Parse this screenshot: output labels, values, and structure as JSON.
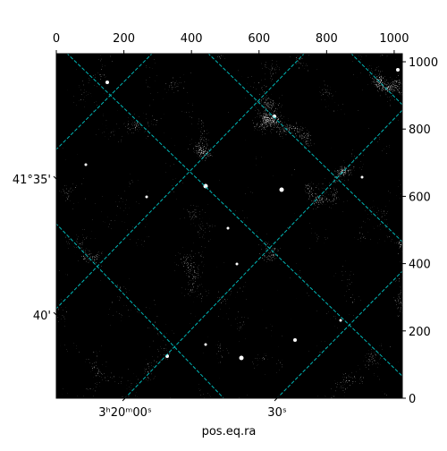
{
  "chart_data": {
    "type": "image",
    "xlabel": "pos.eq.ra",
    "xlim": [
      0,
      1024
    ],
    "xticks": [
      0,
      200,
      400,
      600,
      800,
      1000
    ],
    "ylim": [
      0,
      1024
    ],
    "yticks": [
      0,
      200,
      400,
      600,
      800,
      1000
    ],
    "wcs_xticks": [
      "3ʰ20ᵐ00ˢ",
      "30ˢ"
    ],
    "wcs_yticks": [
      "41°35'",
      "40'"
    ]
  }
}
